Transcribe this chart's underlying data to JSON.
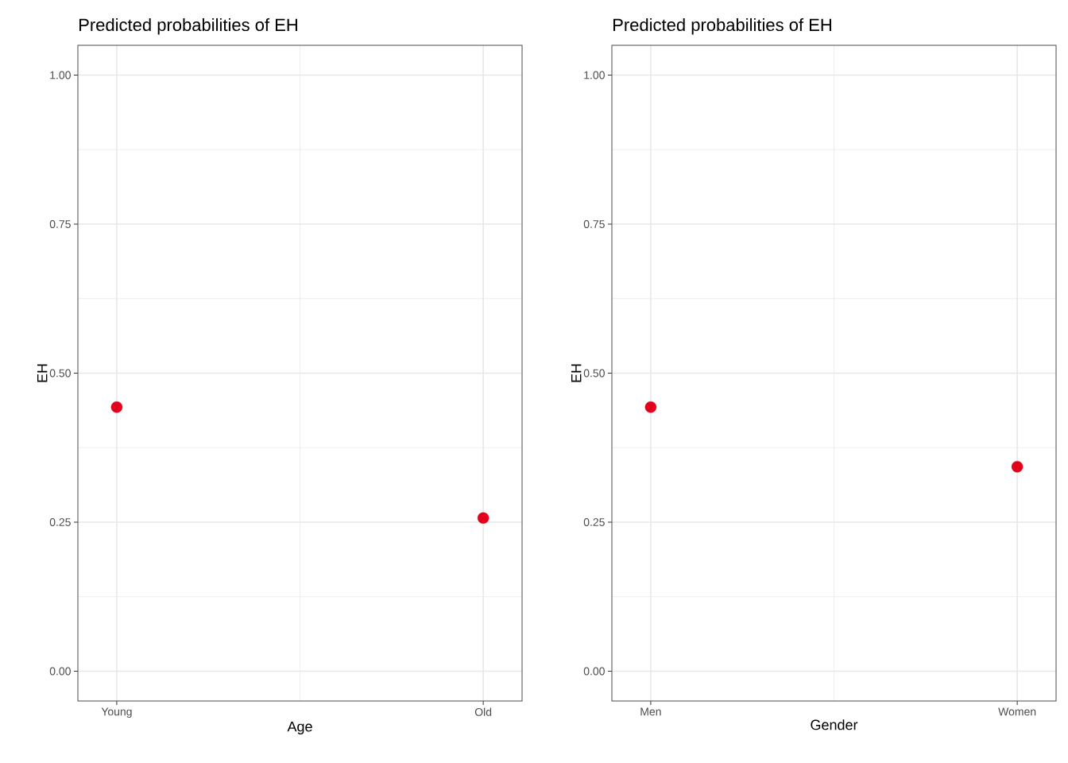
{
  "chart_data": [
    {
      "type": "scatter",
      "title": "Predicted probabilities of EH",
      "xlabel": "Age",
      "ylabel": "EH",
      "categories": [
        "Young",
        "Old"
      ],
      "values": [
        0.443,
        0.257
      ],
      "color": "#e2001a",
      "ylim": [
        -0.05,
        1.05
      ],
      "yticks": [
        {
          "value": 0,
          "label": "0.00"
        },
        {
          "value": 0.125,
          "label": null
        },
        {
          "value": 0.25,
          "label": "0.25"
        },
        {
          "value": 0.375,
          "label": null
        },
        {
          "value": 0.5,
          "label": "0.50"
        },
        {
          "value": 0.625,
          "label": null
        },
        {
          "value": 0.75,
          "label": "0.75"
        },
        {
          "value": 0.875,
          "label": null
        },
        {
          "value": 1,
          "label": "1.00"
        }
      ],
      "grid": true
    },
    {
      "type": "scatter",
      "title": "Predicted probabilities of EH",
      "xlabel": "Gender",
      "ylabel": "EH",
      "categories": [
        "Men",
        "Women"
      ],
      "values": [
        0.443,
        0.343
      ],
      "color": "#e2001a",
      "ylim": [
        -0.05,
        1.05
      ],
      "yticks": [
        {
          "value": 0,
          "label": "0.00"
        },
        {
          "value": 0.125,
          "label": null
        },
        {
          "value": 0.25,
          "label": "0.25"
        },
        {
          "value": 0.375,
          "label": null
        },
        {
          "value": 0.5,
          "label": "0.50"
        },
        {
          "value": 0.625,
          "label": null
        },
        {
          "value": 0.75,
          "label": "0.75"
        },
        {
          "value": 0.875,
          "label": null
        },
        {
          "value": 1,
          "label": "1.00"
        }
      ],
      "grid": true
    }
  ]
}
